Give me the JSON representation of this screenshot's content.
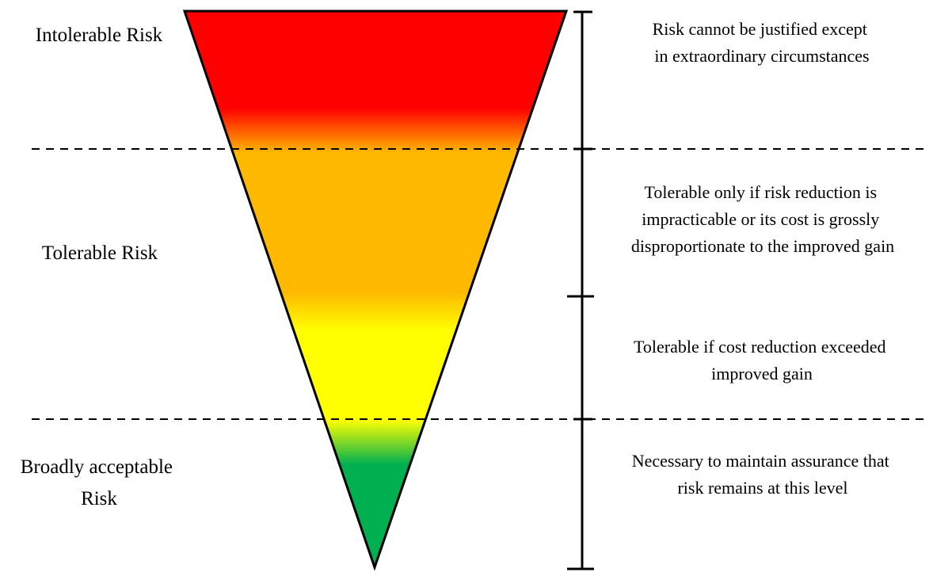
{
  "colors": {
    "intolerable": "#ff0000",
    "tolerable": "#ffb900",
    "yellow": "#ffff00",
    "acceptable": "#00b050",
    "outline": "#000000"
  },
  "zones": [
    {
      "lines": [
        "Intolerable Risk"
      ]
    },
    {
      "lines": [
        "Tolerable Risk"
      ]
    },
    {
      "lines": [
        "Broadly acceptable",
        "Risk"
      ]
    }
  ],
  "descriptions": [
    {
      "lines": [
        "Risk cannot be justified except",
        "in extraordinary circumstances"
      ]
    },
    {
      "lines": [
        "Tolerable only if risk reduction is",
        "impracticable or its cost is grossly",
        "disproportionate to the improved gain"
      ]
    },
    {
      "lines": [
        "Tolerable if cost reduction exceeded",
        "improved gain"
      ]
    },
    {
      "lines": [
        "Necessary to maintain assurance that",
        "risk remains at this level"
      ]
    }
  ]
}
